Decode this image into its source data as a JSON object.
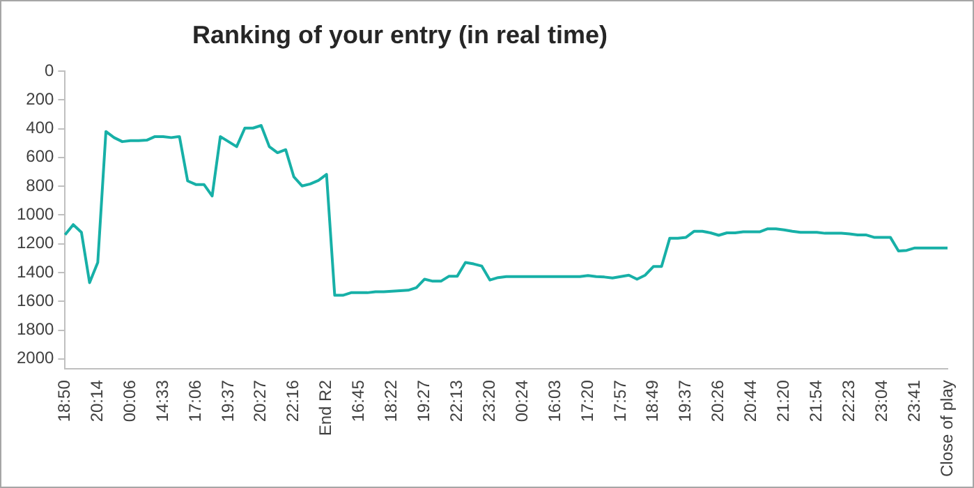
{
  "chart_data": {
    "type": "line",
    "title": "Ranking of your entry (in real time)",
    "categories": [
      "18:50",
      null,
      null,
      null,
      "20:14",
      null,
      null,
      null,
      "00:06",
      null,
      null,
      null,
      "14:33",
      null,
      null,
      null,
      "17:06",
      null,
      null,
      null,
      "19:37",
      null,
      null,
      null,
      "20:27",
      null,
      null,
      null,
      "22:16",
      null,
      null,
      null,
      "End R2",
      null,
      null,
      null,
      "16:45",
      null,
      null,
      null,
      "18:22",
      null,
      null,
      null,
      "19:27",
      null,
      null,
      null,
      "22:13",
      null,
      null,
      null,
      "23:20",
      null,
      null,
      null,
      "00:24",
      null,
      null,
      null,
      "16:03",
      null,
      null,
      null,
      "17:20",
      null,
      null,
      null,
      "17:57",
      null,
      null,
      null,
      "18:49",
      null,
      null,
      null,
      "19:37",
      null,
      null,
      null,
      "20:26",
      null,
      null,
      null,
      "20:44",
      null,
      null,
      null,
      "21:20",
      null,
      null,
      null,
      "21:54",
      null,
      null,
      null,
      "22:23",
      null,
      null,
      null,
      "23:04",
      null,
      null,
      null,
      "23:41",
      null,
      null,
      null,
      "Close of play"
    ],
    "series": [
      {
        "color": "#17b0a7",
        "values": [
          1137,
          1067,
          1120,
          1470,
          1330,
          420,
          462,
          490,
          483,
          483,
          480,
          455,
          455,
          462,
          455,
          763,
          788,
          788,
          868,
          455,
          490,
          525,
          396,
          396,
          378,
          525,
          567,
          546,
          735,
          798,
          784,
          760,
          718,
          1558,
          1558,
          1540,
          1540,
          1540,
          1533,
          1533,
          1530,
          1526,
          1523,
          1505,
          1446,
          1460,
          1460,
          1425,
          1425,
          1330,
          1340,
          1355,
          1452,
          1435,
          1428,
          1428,
          1428,
          1428,
          1428,
          1428,
          1428,
          1428,
          1428,
          1428,
          1421,
          1428,
          1431,
          1438,
          1428,
          1418,
          1446,
          1418,
          1358,
          1358,
          1162,
          1162,
          1155,
          1113,
          1113,
          1124,
          1141,
          1124,
          1124,
          1117,
          1117,
          1117,
          1096,
          1096,
          1103,
          1113,
          1120,
          1120,
          1120,
          1127,
          1127,
          1127,
          1131,
          1138,
          1138,
          1155,
          1155,
          1155,
          1250,
          1246,
          1229,
          1229,
          1229,
          1229,
          1229
        ]
      }
    ],
    "ylim": [
      2070,
      0
    ],
    "yticks": [
      0,
      200,
      400,
      600,
      800,
      1000,
      1200,
      1400,
      1600,
      1800,
      2000
    ],
    "grid": false,
    "legend": false,
    "marker": "none",
    "line_style": "solid"
  }
}
